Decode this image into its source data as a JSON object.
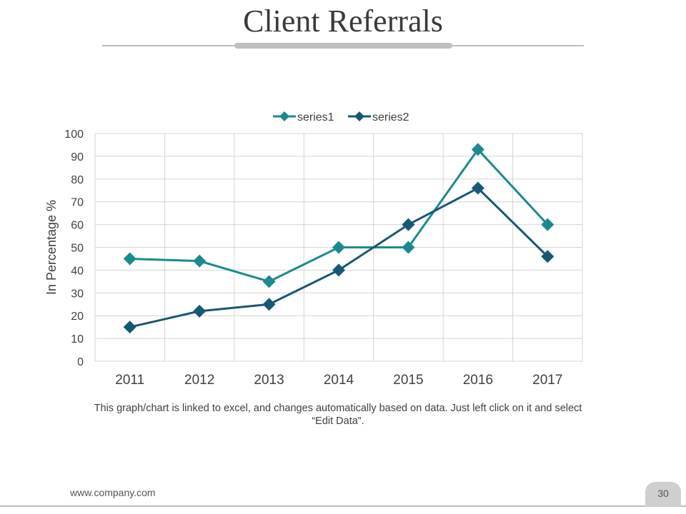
{
  "slide": {
    "title": "Client Referrals",
    "caption": "This graph/chart is linked to excel, and changes automatically based on data. Just left click on it and select “Edit Data”.",
    "footer_url": "www.company.com",
    "page_number": "30"
  },
  "chart_data": {
    "type": "line",
    "categories": [
      "2011",
      "2012",
      "2013",
      "2014",
      "2015",
      "2016",
      "2017"
    ],
    "series": [
      {
        "name": "series1",
        "color": "#1b8a8c",
        "values": [
          45,
          44,
          35,
          50,
          50,
          93,
          60
        ]
      },
      {
        "name": "series2",
        "color": "#175873",
        "values": [
          15,
          22,
          25,
          40,
          60,
          76,
          46
        ]
      }
    ],
    "ylabel": "In Percentage %",
    "xlabel": "",
    "ylim": [
      0,
      100
    ],
    "yticks": [
      0,
      10,
      20,
      30,
      40,
      50,
      60,
      70,
      80,
      90,
      100
    ],
    "grid": true,
    "legend": "top",
    "marker": "diamond"
  }
}
